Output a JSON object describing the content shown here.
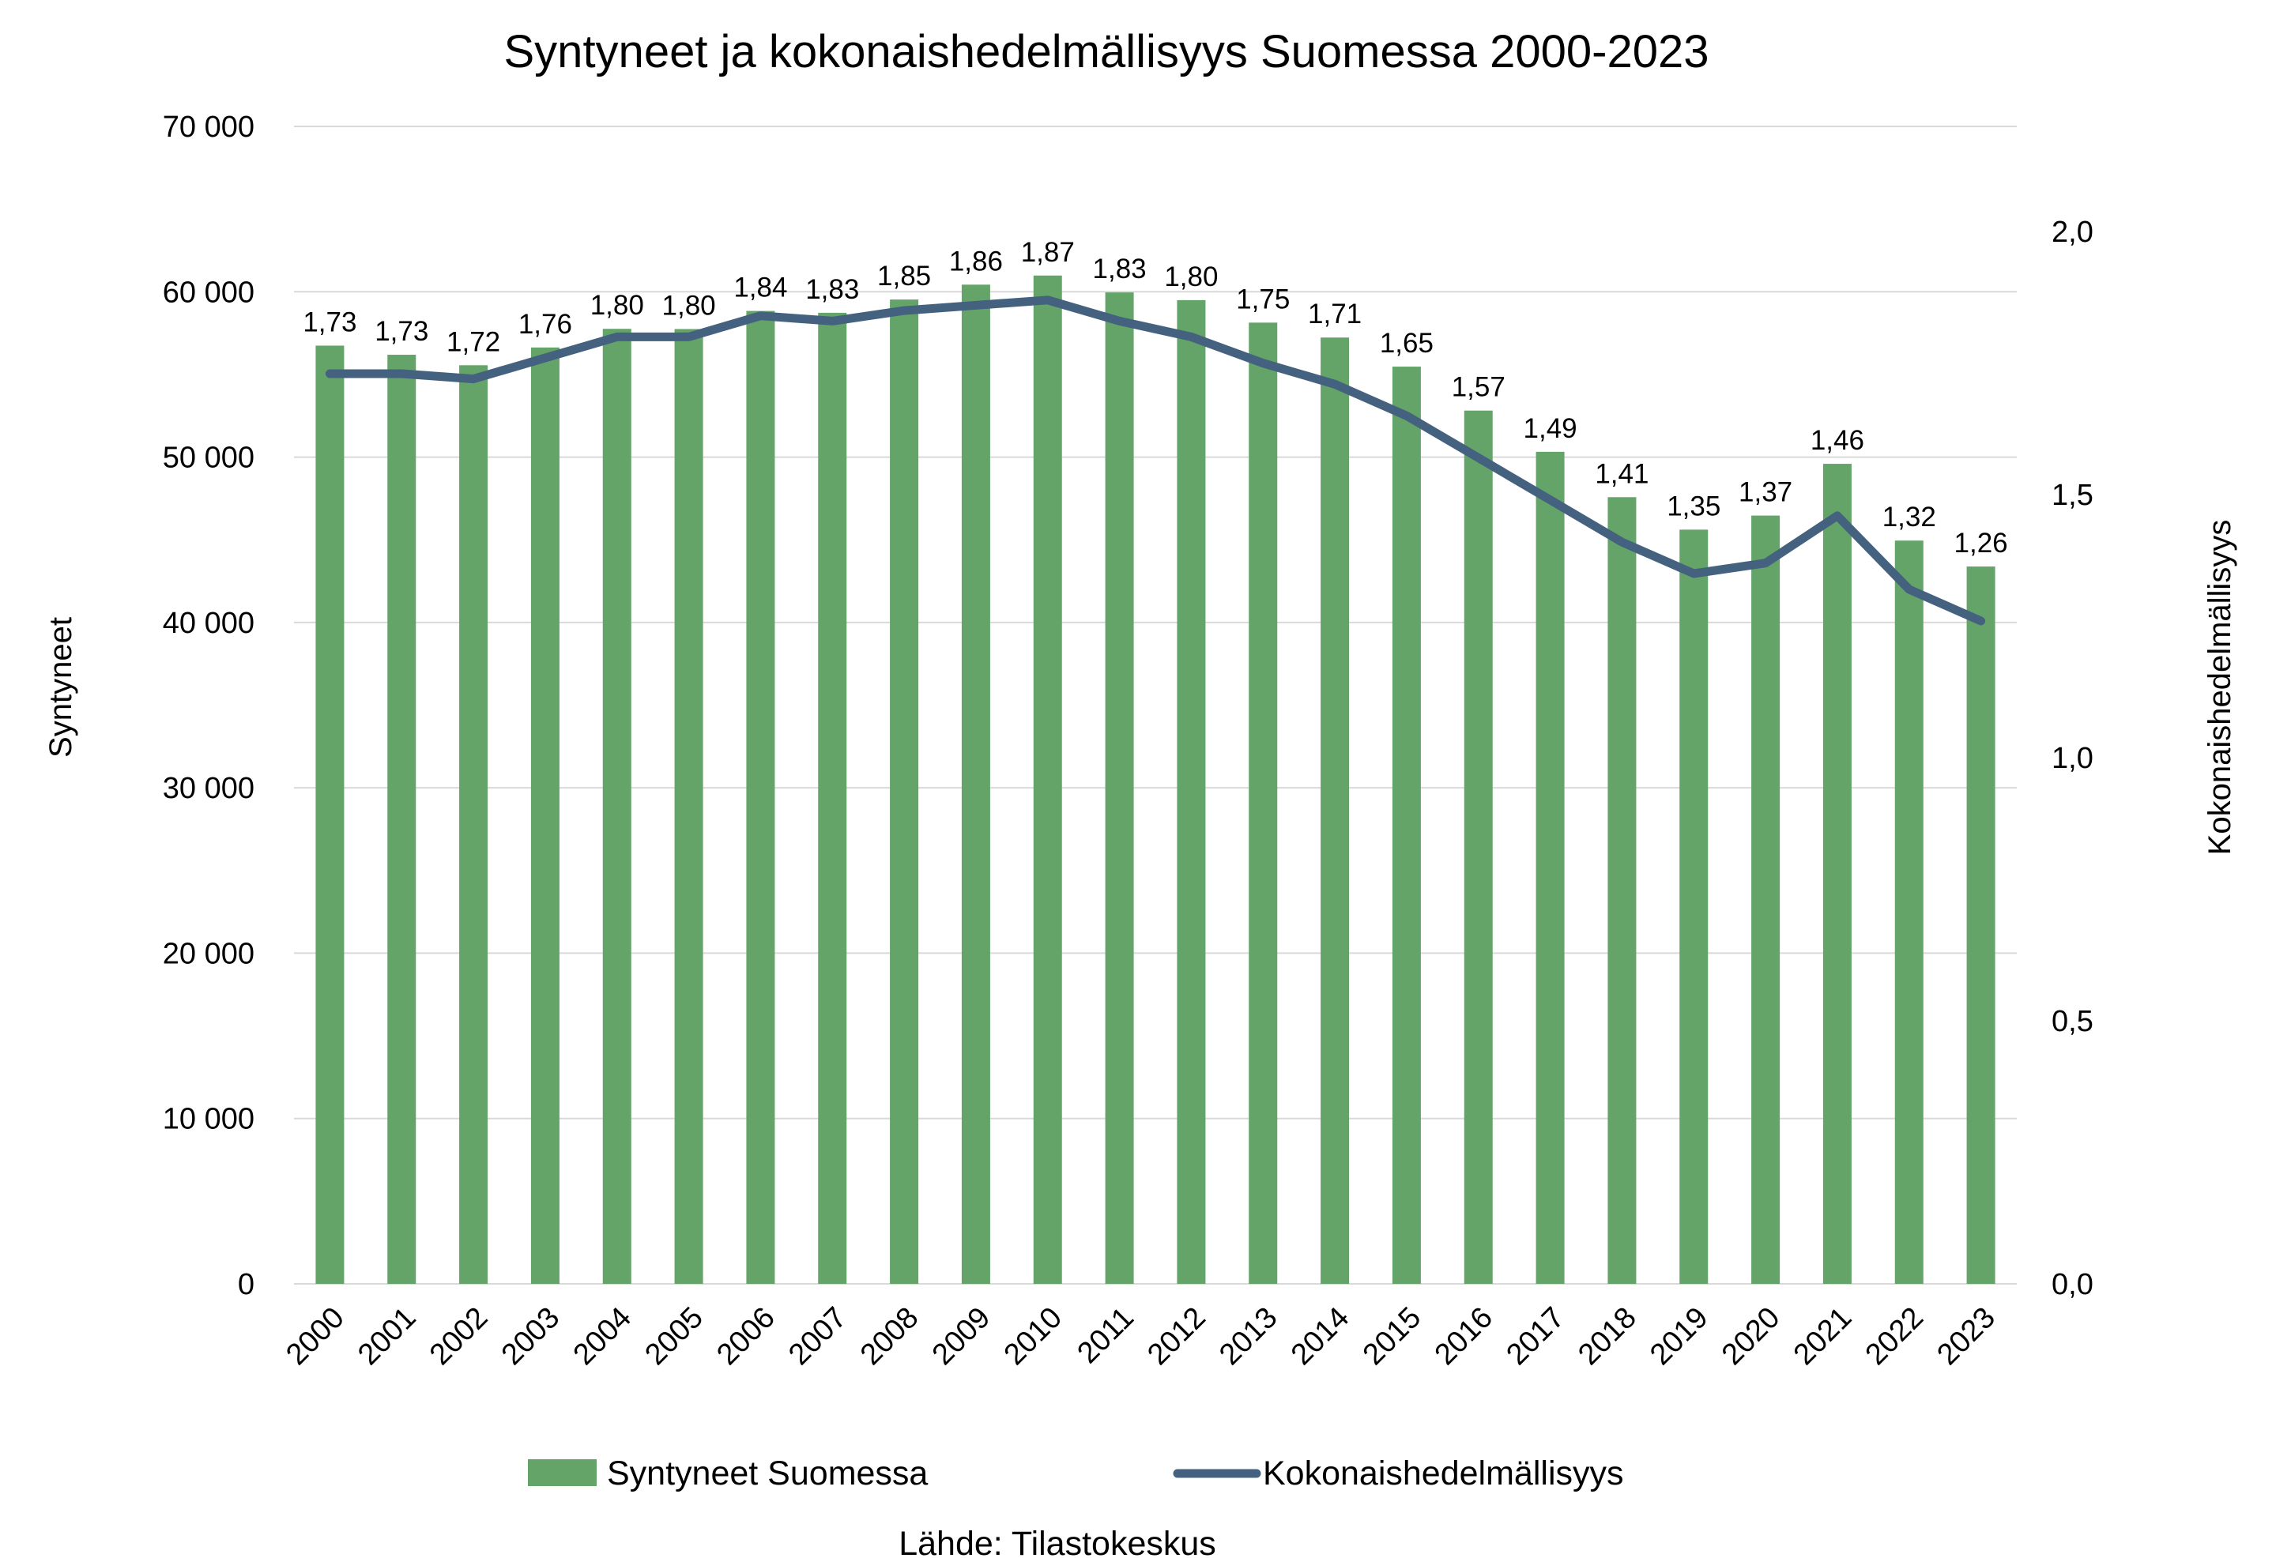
{
  "chart_data": {
    "type": "bar",
    "title": "Syntyneet ja kokonaishedelmällisyys Suomessa 2000-2023",
    "categories": [
      "2000",
      "2001",
      "2002",
      "2003",
      "2004",
      "2005",
      "2006",
      "2007",
      "2008",
      "2009",
      "2010",
      "2011",
      "2012",
      "2013",
      "2014",
      "2015",
      "2016",
      "2017",
      "2018",
      "2019",
      "2020",
      "2021",
      "2022",
      "2023"
    ],
    "series": [
      {
        "name": "Syntyneet Suomessa",
        "type": "bar",
        "axis": "left",
        "color": "#64a468",
        "values": [
          56742,
          56189,
          55555,
          56630,
          57758,
          57745,
          58840,
          58729,
          59530,
          60430,
          60980,
          59961,
          59493,
          58134,
          57232,
          55472,
          52814,
          50321,
          47577,
          45613,
          46463,
          49594,
          44951,
          43383
        ]
      },
      {
        "name": "Kokonaishedelmällisyys",
        "type": "line",
        "axis": "right",
        "color": "#44627f",
        "values": [
          1.73,
          1.73,
          1.72,
          1.76,
          1.8,
          1.8,
          1.84,
          1.83,
          1.85,
          1.86,
          1.87,
          1.83,
          1.8,
          1.75,
          1.71,
          1.65,
          1.57,
          1.49,
          1.41,
          1.35,
          1.37,
          1.46,
          1.32,
          1.26
        ],
        "labels": [
          "1,73",
          "1,73",
          "1,72",
          "1,76",
          "1,80",
          "1,80",
          "1,84",
          "1,83",
          "1,85",
          "1,86",
          "1,87",
          "1,83",
          "1,80",
          "1,75",
          "1,71",
          "1,65",
          "1,57",
          "1,49",
          "1,41",
          "1,35",
          "1,37",
          "1,46",
          "1,32",
          "1,26"
        ]
      }
    ],
    "y_left": {
      "label": "Syntyneet",
      "lim": [
        0,
        70000
      ],
      "ticks": [
        0,
        10000,
        20000,
        30000,
        40000,
        50000,
        60000,
        70000
      ],
      "tick_labels": [
        "0",
        "10 000",
        "20 000",
        "30 000",
        "40 000",
        "50 000",
        "60 000",
        "70 000"
      ]
    },
    "y_right": {
      "label": "Kokonaishedelmällisyys",
      "lim": [
        0,
        2.2
      ],
      "ticks": [
        0,
        0.5,
        1.0,
        1.5,
        2.0
      ],
      "tick_labels": [
        "0,0",
        "0,5",
        "1,0",
        "1,5",
        "2,0"
      ]
    },
    "grid": true,
    "legend": "bottom",
    "source": "Lähde: Tilastokeskus",
    "colors": {
      "bars": "#64a468",
      "line": "#44627f",
      "grid": "#d9d9d9"
    }
  }
}
